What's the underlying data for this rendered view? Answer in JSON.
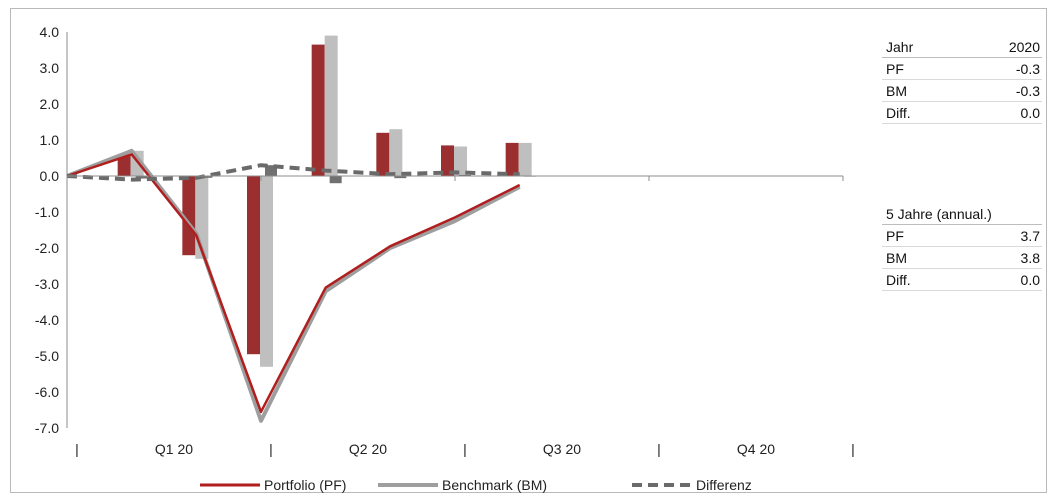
{
  "chart_data": {
    "type": "bar",
    "y_ticks": [
      "4.0",
      "3.0",
      "2.0",
      "1.0",
      "0.0",
      "-1.0",
      "-2.0",
      "-3.0",
      "-4.0",
      "-5.0",
      "-6.0",
      "-7.0"
    ],
    "ylim": [
      -7,
      4
    ],
    "quarters": [
      "Q1 20",
      "Q2 20",
      "Q3 20",
      "Q4 20"
    ],
    "bar_series": [
      {
        "color": "#9b2f2f",
        "values": [
          0.6,
          -2.2,
          -4.95,
          3.65,
          1.2,
          0.85,
          0.92
        ]
      },
      {
        "color": "#bfbfbf",
        "values": [
          0.7,
          -2.3,
          -5.3,
          3.9,
          1.3,
          0.82,
          0.92
        ]
      },
      {
        "color": "#707070",
        "values": [
          -0.07,
          -0.05,
          0.3,
          -0.2,
          -0.06,
          0.03,
          0.01
        ]
      }
    ],
    "line_series": [
      {
        "name": "Portfolio (PF)",
        "color": "#b01e1e",
        "values": [
          0,
          0.6,
          -1.65,
          -6.55,
          -3.1,
          -1.95,
          -1.15,
          -0.25
        ]
      },
      {
        "name": "Benchmark (BM)",
        "color": "#9e9e9e",
        "values": [
          0,
          0.7,
          -1.6,
          -6.8,
          -3.2,
          -2.0,
          -1.25,
          -0.3
        ]
      },
      {
        "name": "Differenz",
        "color": "#6a6a6a",
        "dashed": true,
        "values": [
          0,
          -0.1,
          -0.05,
          0.3,
          0.15,
          0.05,
          0.1,
          0.05
        ]
      }
    ],
    "legend_position": "bottom-center"
  },
  "tables": {
    "year": {
      "header": [
        "Jahr",
        "2020"
      ],
      "rows": [
        [
          "PF",
          "-0.3"
        ],
        [
          "BM",
          "-0.3"
        ],
        [
          "Diff.",
          "0.0"
        ]
      ]
    },
    "five_year": {
      "header": [
        "5 Jahre (annual.)",
        ""
      ],
      "rows": [
        [
          "PF",
          "3.7"
        ],
        [
          "BM",
          "3.8"
        ],
        [
          "Diff.",
          "0.0"
        ]
      ]
    }
  }
}
